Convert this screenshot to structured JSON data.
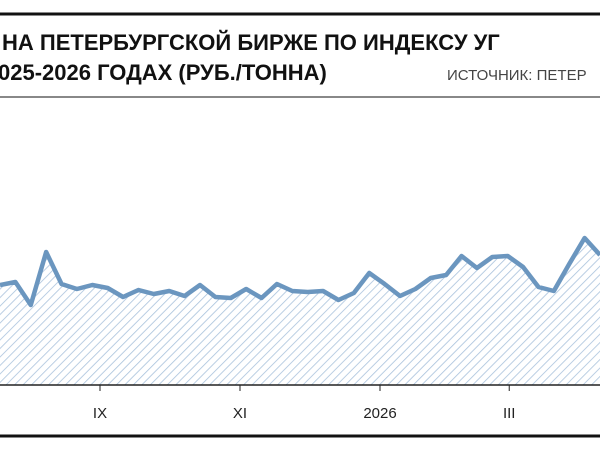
{
  "chart_data": {
    "type": "area",
    "title": [
      "НА ПЕТЕРБУРГСКОЙ БИРЖЕ ПО ИНДЕКСУ УГ",
      "025-2026 ГОДАХ (РУБ./ТОННА)"
    ],
    "source": "ИСТОЧНИК: ПЕТЕР",
    "x": [
      0,
      1,
      2,
      3,
      4,
      5,
      6,
      7,
      8,
      9,
      10,
      11,
      12,
      13,
      14,
      15,
      16,
      17,
      18,
      19,
      20,
      21,
      22,
      23,
      24,
      25,
      26,
      27,
      28,
      29,
      30,
      31,
      32,
      33,
      34,
      35,
      36,
      37,
      38,
      39
    ],
    "values": [
      100,
      103,
      80,
      133,
      101,
      96,
      100,
      97,
      88,
      95,
      91,
      94,
      89,
      100,
      88,
      87,
      96,
      87,
      101,
      94,
      93,
      94,
      85,
      92,
      112,
      101,
      89,
      96,
      107,
      110,
      129,
      117,
      128,
      129,
      118,
      98,
      94,
      121,
      147,
      130
    ],
    "color": "#6b96bf",
    "xlim": [
      0,
      39
    ],
    "xticks": [
      {
        "value": 6.5,
        "label": "IX"
      },
      {
        "value": 15.6,
        "label": "XI"
      },
      {
        "value": 24.7,
        "label": "2026"
      },
      {
        "value": 33.1,
        "label": "III"
      }
    ],
    "ylim": [
      0,
      300
    ]
  }
}
